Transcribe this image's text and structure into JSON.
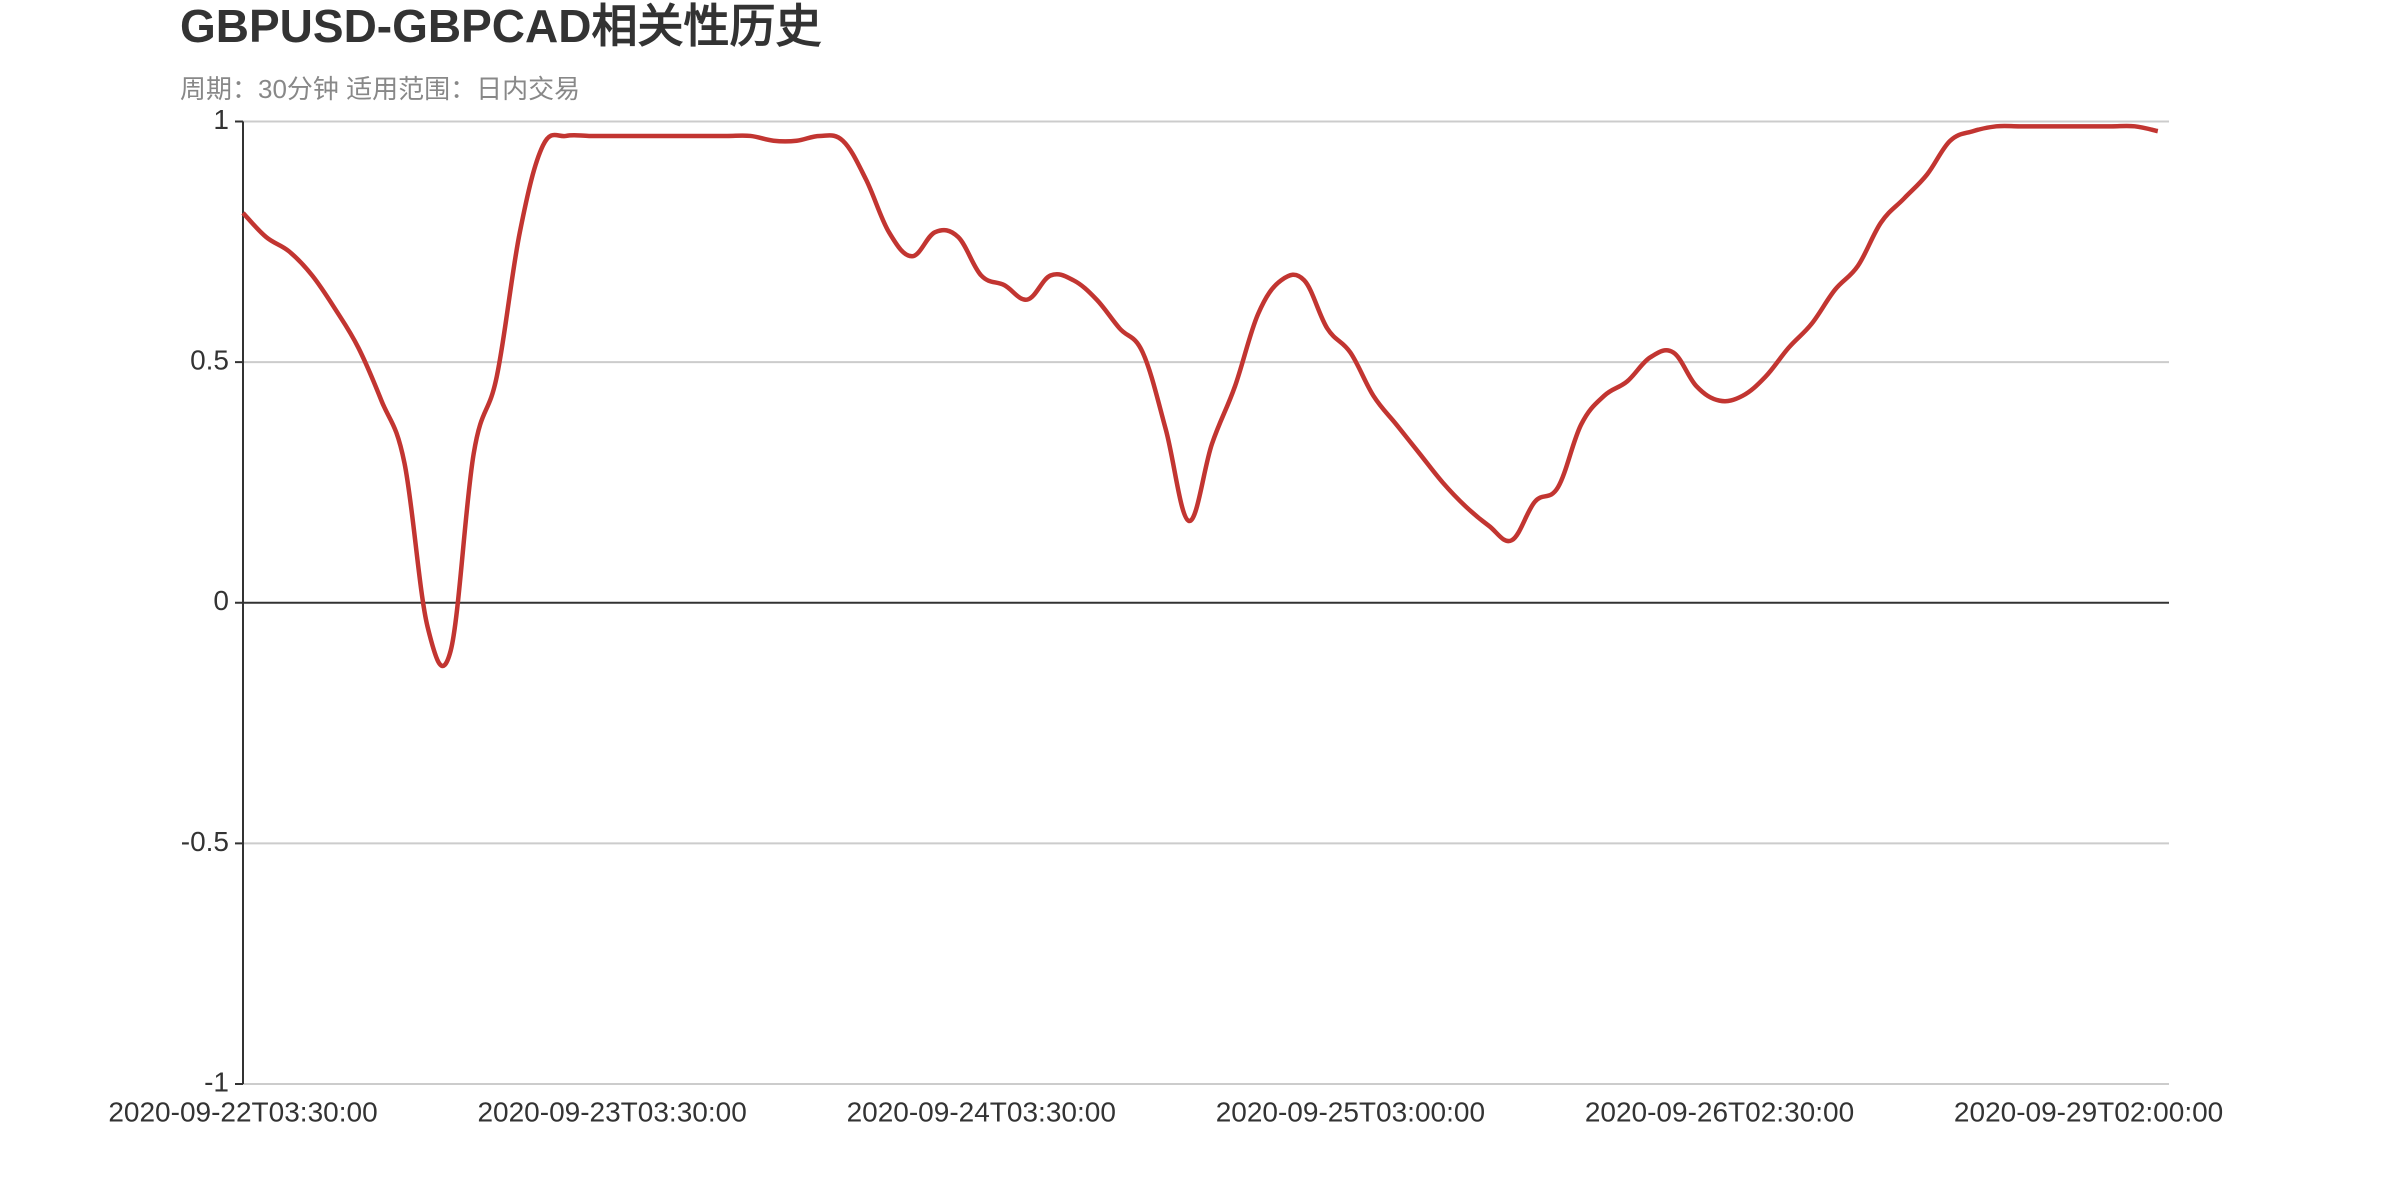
{
  "chart_data": {
    "type": "line",
    "title": "GBPUSD-GBPCAD相关性历史",
    "subtitle": "周期：30分钟 适用范围：日内交易",
    "categories": [
      "2020-09-22T03:30:00",
      null,
      null,
      null,
      null,
      null,
      null,
      null,
      null,
      null,
      null,
      null,
      null,
      null,
      null,
      null,
      "2020-09-23T03:30:00",
      null,
      null,
      null,
      null,
      null,
      null,
      null,
      null,
      null,
      null,
      null,
      null,
      null,
      null,
      null,
      "2020-09-24T03:30:00",
      null,
      null,
      null,
      null,
      null,
      null,
      null,
      null,
      null,
      null,
      null,
      null,
      null,
      null,
      null,
      "2020-09-25T03:00:00",
      null,
      null,
      null,
      null,
      null,
      null,
      null,
      null,
      null,
      null,
      null,
      null,
      null,
      null,
      null,
      "2020-09-26T02:30:00",
      null,
      null,
      null,
      null,
      null,
      null,
      null,
      null,
      null,
      null,
      null,
      null,
      null,
      null,
      null,
      "2020-09-29T02:00:00",
      null,
      null,
      null
    ],
    "values": [
      0.81,
      0.76,
      0.73,
      0.68,
      0.61,
      0.53,
      0.42,
      0.29,
      -0.05,
      -0.1,
      0.31,
      0.47,
      0.77,
      0.95,
      0.97,
      0.97,
      0.97,
      0.97,
      0.97,
      0.97,
      0.97,
      0.97,
      0.97,
      0.96,
      0.96,
      0.97,
      0.96,
      0.88,
      0.77,
      0.72,
      0.77,
      0.76,
      0.68,
      0.66,
      0.63,
      0.68,
      0.67,
      0.63,
      0.57,
      0.52,
      0.36,
      0.17,
      0.33,
      0.45,
      0.6,
      0.67,
      0.67,
      0.57,
      0.52,
      0.43,
      0.37,
      0.31,
      0.25,
      0.2,
      0.16,
      0.13,
      0.21,
      0.24,
      0.37,
      0.43,
      0.46,
      0.51,
      0.52,
      0.45,
      0.42,
      0.43,
      0.47,
      0.53,
      0.58,
      0.65,
      0.7,
      0.79,
      0.84,
      0.89,
      0.96,
      0.98,
      0.99,
      0.99,
      0.99,
      0.99,
      0.99,
      0.99,
      0.99,
      0.98
    ],
    "color": "#c23531",
    "ylim": [
      -1,
      1
    ],
    "yticks": [
      -1,
      -0.5,
      0,
      0.5,
      1
    ],
    "grid": true
  }
}
